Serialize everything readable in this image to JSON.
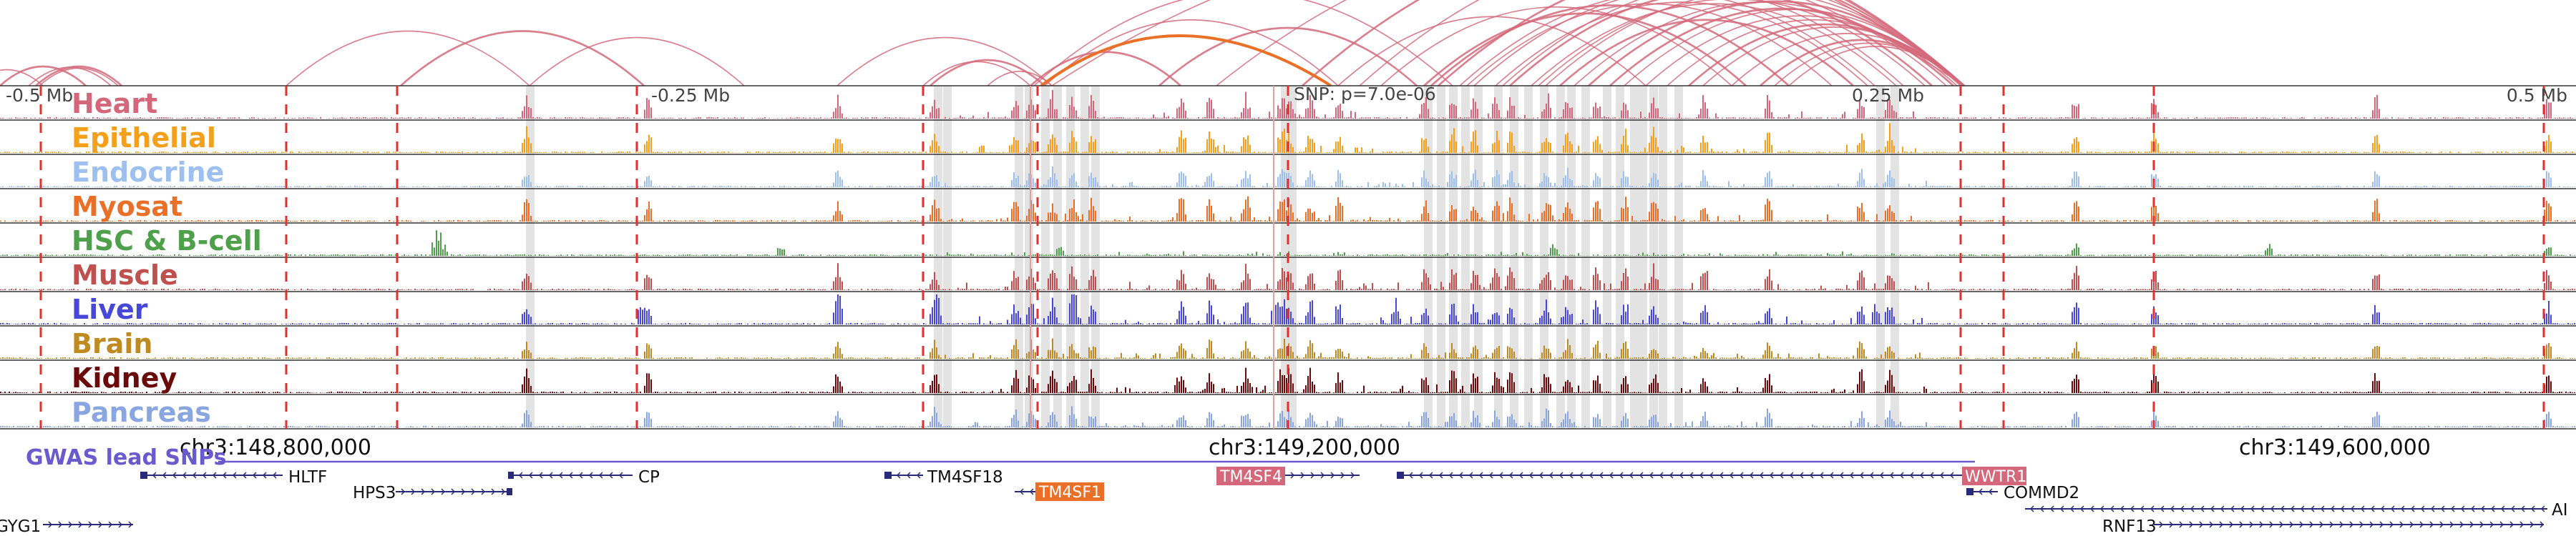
{
  "scale": {
    "left_label": "-0.5 Mb",
    "mid_left_label": "-0.25 Mb",
    "snp_label": "SNP: p=7.0e-06",
    "mid_right_label": "0.25 Mb",
    "right_label": "0.5 Mb"
  },
  "tracks": [
    {
      "label": "Heart",
      "color": "#d4687a"
    },
    {
      "label": "Epithelial",
      "color": "#f5a01a"
    },
    {
      "label": "Endocrine",
      "color": "#9ec0ee"
    },
    {
      "label": "Myosat",
      "color": "#ea7028"
    },
    {
      "label": "HSC & B-cell",
      "color": "#4ea04a"
    },
    {
      "label": "Muscle",
      "color": "#c0504d"
    },
    {
      "label": "Liver",
      "color": "#4848d8"
    },
    {
      "label": "Brain",
      "color": "#c08a22"
    },
    {
      "label": "Kidney",
      "color": "#6a0a0a"
    },
    {
      "label": "Pancreas",
      "color": "#8aa6e0"
    }
  ],
  "coordinates": {
    "left": "chr3:148,800,000",
    "middle": "chr3:149,200,000",
    "right": "chr3:149,600,000"
  },
  "gwas_label": "GWAS lead SNPs",
  "genes": [
    {
      "name": "HLTF",
      "highlight": false
    },
    {
      "name": "CP",
      "highlight": false
    },
    {
      "name": "TM4SF18",
      "highlight": false
    },
    {
      "name": "TM4SF4",
      "highlight": true,
      "color": "#d4687a"
    },
    {
      "name": "WWTR1",
      "highlight": true,
      "color": "#d4687a"
    },
    {
      "name": "HPS3",
      "highlight": false
    },
    {
      "name": "TM4SF1",
      "highlight": true,
      "color": "#ea7028"
    },
    {
      "name": "COMMD2",
      "highlight": false
    },
    {
      "name": "GYG1",
      "highlight": false
    },
    {
      "name": "RNF13",
      "highlight": false
    },
    {
      "name": "AI",
      "highlight": false
    }
  ],
  "colors": {
    "arc": "#d4687a",
    "arc_highlight": "#ea7028",
    "snp_line": "#e03030",
    "gwas": "#6a5acd",
    "gene": "#2a2a7a"
  }
}
